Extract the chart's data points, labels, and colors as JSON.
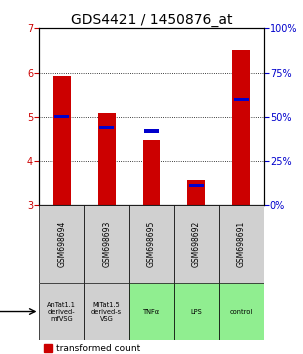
{
  "title": "GDS4421 / 1450876_at",
  "samples": [
    "GSM698694",
    "GSM698693",
    "GSM698695",
    "GSM698692",
    "GSM698691"
  ],
  "agents": [
    "AnTat1.1\nderived-\nmfVSG",
    "MiTat1.5\nderived-s\nVSG",
    "TNFα",
    "LPS",
    "control"
  ],
  "agent_colors": [
    "#d0d0d0",
    "#d0d0d0",
    "#90ee90",
    "#90ee90",
    "#90ee90"
  ],
  "sample_bg_color": "#d0d0d0",
  "transformed_counts": [
    5.93,
    5.08,
    4.48,
    3.57,
    6.5
  ],
  "percentile_ranks": [
    50,
    44,
    42,
    11,
    60
  ],
  "bar_bottom": 3.0,
  "ylim_left": [
    3,
    7
  ],
  "ylim_right": [
    0,
    100
  ],
  "yticks_left": [
    3,
    4,
    5,
    6,
    7
  ],
  "yticks_right": [
    0,
    25,
    50,
    75,
    100
  ],
  "red_color": "#cc0000",
  "blue_color": "#0000cc",
  "title_fontsize": 10,
  "tick_fontsize": 7,
  "legend_fontsize": 6.5
}
